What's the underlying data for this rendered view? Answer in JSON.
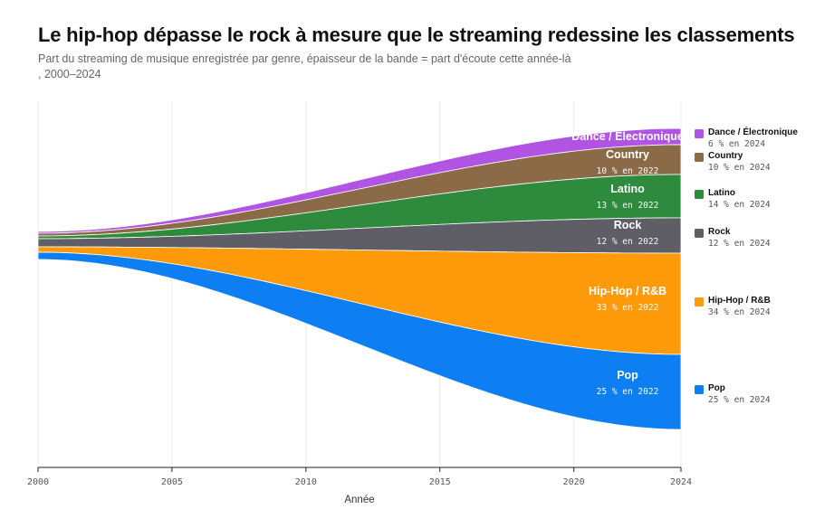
{
  "title": "Le hip-hop dépasse le rock à mesure que le streaming redessine les classements",
  "subtitle": "Part du streaming de musique enregistrée par genre, épaisseur de la bande = part d'écoute cette année-là , 2000–2024",
  "chart_data": {
    "type": "area",
    "title": "Le hip-hop dépasse le rock à mesure que le streaming redessine les classements",
    "subtitle": "Part du streaming de musique enregistrée par genre, épaisseur de la bande = part d'écoute cette année-là , 2000–2024",
    "xlabel": "Année",
    "ylabel": "",
    "xlim": [
      2000,
      2024
    ],
    "x_ticks": [
      "2000",
      "2005",
      "2010",
      "2015",
      "2020",
      "2024"
    ],
    "grid": true,
    "legend": "right",
    "series": [
      {
        "name": "Dance / Électronique",
        "color": "#b254e3",
        "in_label": "Dance / Électronique",
        "in_sub": "",
        "legend_sub": "6 % en 2024"
      },
      {
        "name": "Country",
        "color": "#8b6b47",
        "in_label": "Country",
        "in_sub": "10 % en 2022",
        "legend_sub": "10 % en 2024"
      },
      {
        "name": "Latino",
        "color": "#2e8b3e",
        "in_label": "Latino",
        "in_sub": "13 % en 2022",
        "legend_sub": "14 % en 2024"
      },
      {
        "name": "Rock",
        "color": "#5f5e66",
        "in_label": "Rock",
        "in_sub": "12 % en 2022",
        "legend_sub": "12 % en 2024"
      },
      {
        "name": "Hip-Hop / R&B",
        "color": "#ff9a0a",
        "in_label": "Hip-Hop / R&B",
        "in_sub": "33 % en 2022",
        "legend_sub": "34 % en 2024"
      },
      {
        "name": "Pop",
        "color": "#0d7ff2",
        "in_label": "Pop",
        "in_sub": "25 % en 2022",
        "legend_sub": "25 % en 2024"
      }
    ]
  }
}
